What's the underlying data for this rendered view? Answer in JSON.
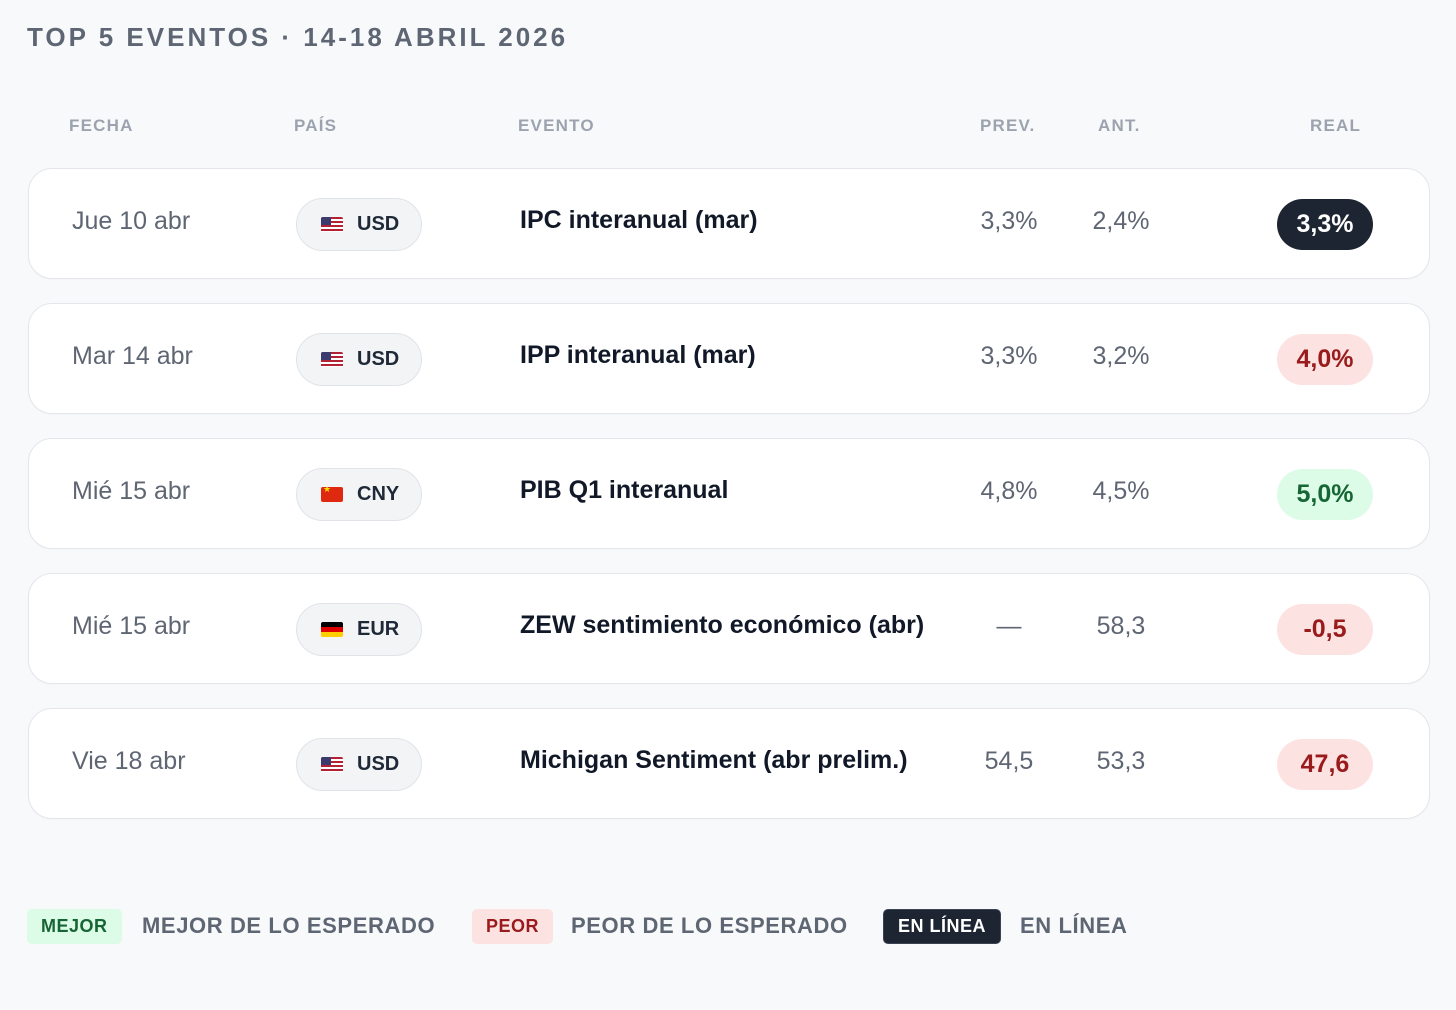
{
  "title": "TOP 5 EVENTOS · 14-18 ABRIL 2026",
  "columns": {
    "fecha": "FECHA",
    "pais": "PAÍS",
    "evento": "EVENTO",
    "prev": "PREV.",
    "ant": "ANT.",
    "real": "REAL"
  },
  "rows": [
    {
      "date": "Jue 10 abr",
      "flag": "us-flag-icon",
      "currency": "USD",
      "event": "IPC interanual (mar)",
      "prev": "3,3%",
      "ant": "2,4%",
      "real": "3,3%",
      "status": "inline"
    },
    {
      "date": "Mar 14 abr",
      "flag": "us-flag-icon",
      "currency": "USD",
      "event": "IPP interanual (mar)",
      "prev": "3,3%",
      "ant": "3,2%",
      "real": "4,0%",
      "status": "worse"
    },
    {
      "date": "Mié 15 abr",
      "flag": "cn-flag-icon",
      "currency": "CNY",
      "event": "PIB Q1 interanual",
      "prev": "4,8%",
      "ant": "4,5%",
      "real": "5,0%",
      "status": "better"
    },
    {
      "date": "Mié 15 abr",
      "flag": "de-flag-icon",
      "currency": "EUR",
      "event": "ZEW sentimiento económico (abr)",
      "prev": "—",
      "ant": "58,3",
      "real": "-0,5",
      "status": "worse"
    },
    {
      "date": "Vie 18 abr",
      "flag": "us-flag-icon",
      "currency": "USD",
      "event": "Michigan Sentiment (abr prelim.)",
      "prev": "54,5",
      "ant": "53,3",
      "real": "47,6",
      "status": "worse"
    }
  ],
  "legend": {
    "better_tag": "MEJOR",
    "better_text": "MEJOR DE LO ESPERADO",
    "worse_tag": "PEOR",
    "worse_text": "PEOR DE LO ESPERADO",
    "inline_tag": "EN LÍNEA",
    "inline_text": "EN LÍNEA"
  },
  "colors": {
    "better_bg": "#dcfce7",
    "better_fg": "#166534",
    "worse_bg": "#fde2e2",
    "worse_fg": "#991b1b",
    "inline_bg": "#1e2532",
    "inline_fg": "#ffffff"
  }
}
